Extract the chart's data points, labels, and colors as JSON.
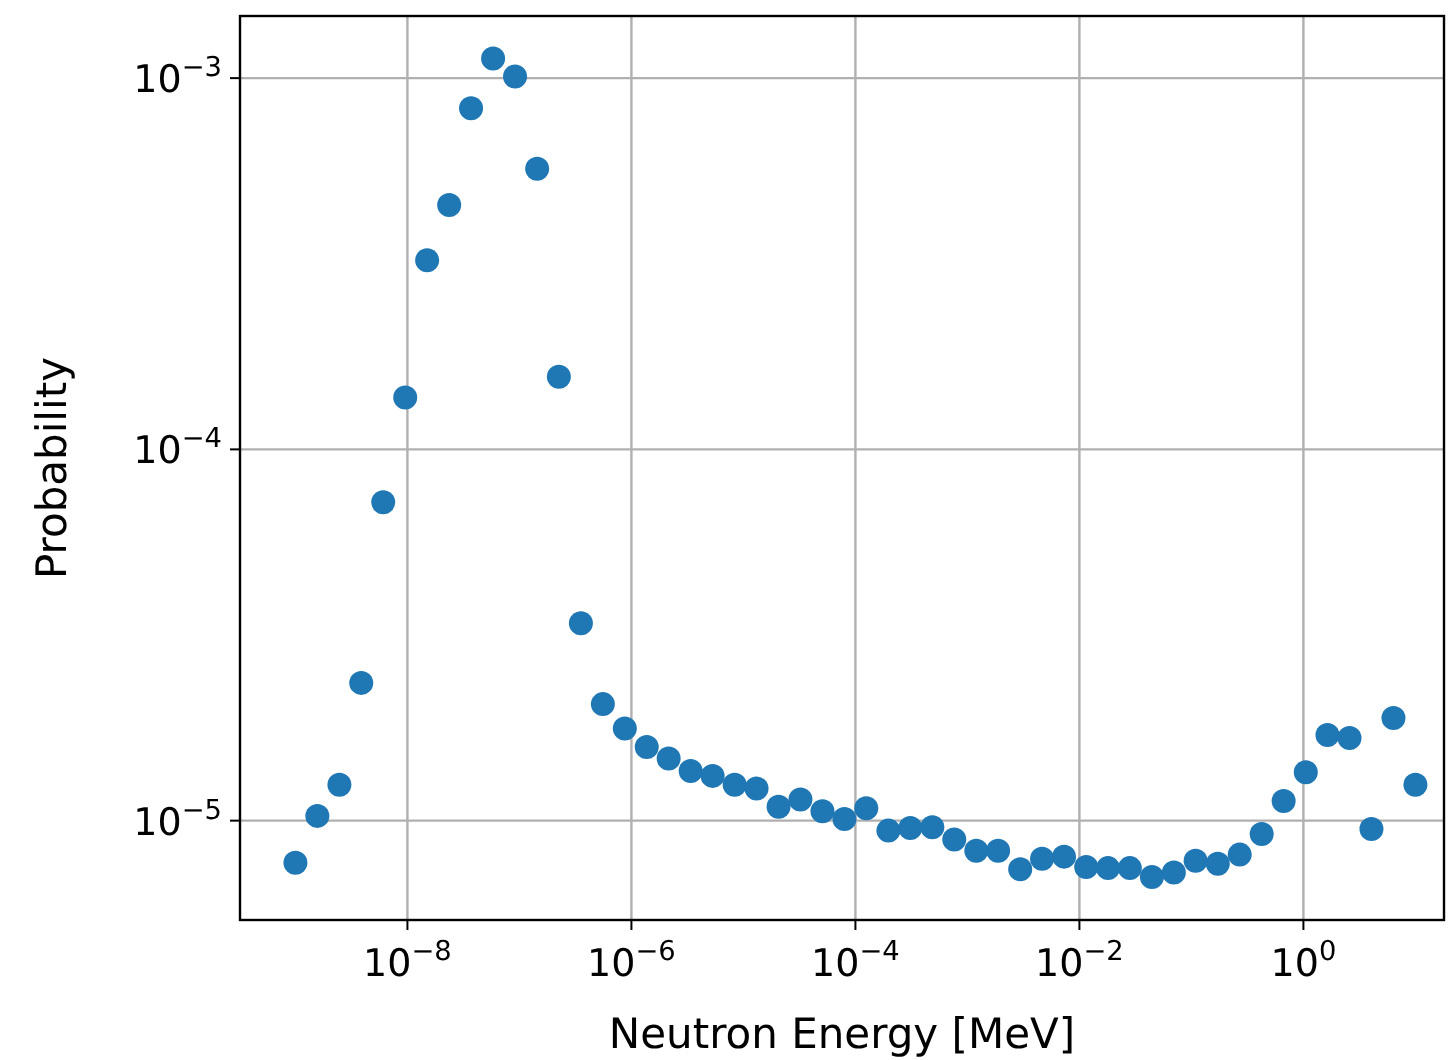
{
  "chart_data": {
    "type": "scatter",
    "xlabel": "Neutron Energy [MeV]",
    "ylabel": "Probability",
    "log": "xy",
    "grid": true,
    "marker": "circle",
    "xlim": [
      3.2e-10,
      18
    ],
    "ylim": [
      5.4e-06,
      0.00147
    ],
    "xticks": [
      {
        "value": 1e-08,
        "label": "10$^{−8}$"
      },
      {
        "value": 1e-06,
        "label": "10$^{−6}$"
      },
      {
        "value": 0.0001,
        "label": "10$^{−4}$"
      },
      {
        "value": 0.01,
        "label": "10$^{−2}$"
      },
      {
        "value": 1,
        "label": "10$^{0}$"
      }
    ],
    "yticks": [
      {
        "value": 1e-05,
        "label": "10$^{−5}$"
      },
      {
        "value": 0.0001,
        "label": "10$^{−4}$"
      },
      {
        "value": 0.001,
        "label": "10$^{−3}$"
      }
    ],
    "series": [
      {
        "color": "#1f77b4",
        "x": [
          1e-09,
          1.57e-09,
          2.47e-09,
          3.87e-09,
          6.08e-09,
          9.56e-09,
          1.5e-08,
          2.36e-08,
          3.7e-08,
          5.82e-08,
          9.14e-08,
          1.44e-07,
          2.25e-07,
          3.54e-07,
          5.56e-07,
          8.73e-07,
          1.37e-06,
          2.15e-06,
          3.38e-06,
          5.31e-06,
          8.35e-06,
          1.31e-05,
          2.06e-05,
          3.23e-05,
          5.08e-05,
          7.98e-05,
          0.000125,
          0.000197,
          0.000309,
          0.000486,
          0.000763,
          0.0012,
          0.00188,
          0.00296,
          0.00464,
          0.00729,
          0.0115,
          0.018,
          0.0282,
          0.0444,
          0.0697,
          0.109,
          0.172,
          0.27,
          0.424,
          0.666,
          1.05,
          1.64,
          2.58,
          4.05,
          6.37,
          10
        ],
        "values": [
          7.7e-06,
          1.03e-05,
          1.25e-05,
          2.35e-05,
          7.2e-05,
          0.000138,
          0.000323,
          0.000455,
          0.00083,
          0.00113,
          0.00101,
          0.00057,
          0.000157,
          3.4e-05,
          2.06e-05,
          1.77e-05,
          1.58e-05,
          1.47e-05,
          1.36e-05,
          1.32e-05,
          1.25e-05,
          1.22e-05,
          1.09e-05,
          1.14e-05,
          1.06e-05,
          1.01e-05,
          1.08e-05,
          9.4e-06,
          9.55e-06,
          9.6e-06,
          8.9e-06,
          8.3e-06,
          8.3e-06,
          7.4e-06,
          7.9e-06,
          8e-06,
          7.5e-06,
          7.45e-06,
          7.45e-06,
          7.05e-06,
          7.25e-06,
          7.8e-06,
          7.65e-06,
          8.1e-06,
          9.2e-06,
          1.13e-05,
          1.35e-05,
          1.7e-05,
          1.67e-05,
          9.5e-06,
          1.89e-05,
          1.25e-05
        ]
      }
    ]
  }
}
